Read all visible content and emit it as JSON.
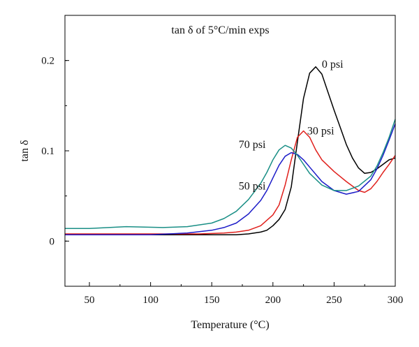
{
  "chart_data": {
    "type": "line",
    "title": "tan δ of 5°C/min exps",
    "xlabel": "Temperature (°C)",
    "ylabel": "tan δ",
    "xlim": [
      30,
      300
    ],
    "ylim": [
      -0.05,
      0.25
    ],
    "xticks": [
      50,
      100,
      150,
      200,
      250,
      300
    ],
    "yticks": [
      0,
      0.1,
      0.2
    ],
    "ytick_labels": [
      "0",
      "0.1",
      "0.2"
    ],
    "grid": false,
    "legend": "none",
    "series": [
      {
        "name": "0 psi",
        "color": "#000000",
        "x": [
          30,
          60,
          100,
          140,
          170,
          180,
          190,
          195,
          200,
          205,
          210,
          215,
          220,
          225,
          230,
          235,
          240,
          245,
          250,
          255,
          260,
          265,
          270,
          275,
          280,
          285,
          290,
          295,
          300
        ],
        "y": [
          0.007,
          0.007,
          0.007,
          0.007,
          0.007,
          0.008,
          0.01,
          0.012,
          0.017,
          0.024,
          0.035,
          0.06,
          0.11,
          0.158,
          0.186,
          0.193,
          0.185,
          0.165,
          0.145,
          0.126,
          0.107,
          0.092,
          0.081,
          0.075,
          0.076,
          0.08,
          0.085,
          0.09,
          0.092
        ]
      },
      {
        "name": "30 psi",
        "color": "#e0201c",
        "x": [
          30,
          60,
          100,
          140,
          160,
          170,
          180,
          190,
          200,
          205,
          210,
          215,
          220,
          225,
          230,
          235,
          240,
          250,
          260,
          270,
          275,
          280,
          285,
          290,
          295,
          300
        ],
        "y": [
          0.008,
          0.008,
          0.008,
          0.008,
          0.009,
          0.01,
          0.012,
          0.017,
          0.029,
          0.04,
          0.062,
          0.09,
          0.115,
          0.122,
          0.115,
          0.101,
          0.09,
          0.077,
          0.066,
          0.056,
          0.054,
          0.058,
          0.066,
          0.076,
          0.085,
          0.095
        ]
      },
      {
        "name": "50 psi",
        "color": "#1c1cc8",
        "x": [
          30,
          60,
          100,
          130,
          150,
          160,
          170,
          180,
          190,
          195,
          200,
          205,
          210,
          215,
          220,
          225,
          230,
          240,
          250,
          260,
          270,
          280,
          285,
          290,
          295,
          300
        ],
        "y": [
          0.007,
          0.007,
          0.007,
          0.009,
          0.012,
          0.015,
          0.02,
          0.03,
          0.045,
          0.056,
          0.07,
          0.084,
          0.094,
          0.098,
          0.096,
          0.09,
          0.082,
          0.066,
          0.056,
          0.052,
          0.055,
          0.068,
          0.08,
          0.095,
          0.112,
          0.13
        ]
      },
      {
        "name": "70 psi",
        "color": "#1a8f86",
        "x": [
          30,
          50,
          80,
          110,
          130,
          150,
          160,
          170,
          180,
          190,
          195,
          200,
          205,
          210,
          215,
          220,
          230,
          240,
          250,
          260,
          270,
          280,
          285,
          290,
          295,
          300
        ],
        "y": [
          0.014,
          0.014,
          0.016,
          0.015,
          0.016,
          0.02,
          0.025,
          0.033,
          0.046,
          0.064,
          0.076,
          0.09,
          0.101,
          0.106,
          0.103,
          0.095,
          0.075,
          0.062,
          0.056,
          0.056,
          0.061,
          0.072,
          0.083,
          0.098,
          0.115,
          0.135
        ]
      }
    ],
    "annotations": [
      {
        "text": "0 psi",
        "x": 240,
        "y": 0.192
      },
      {
        "text": "30 psi",
        "x": 228,
        "y": 0.118
      },
      {
        "text": "70 psi",
        "x": 172,
        "y": 0.103
      },
      {
        "text": "50 psi",
        "x": 172,
        "y": 0.057
      }
    ]
  }
}
